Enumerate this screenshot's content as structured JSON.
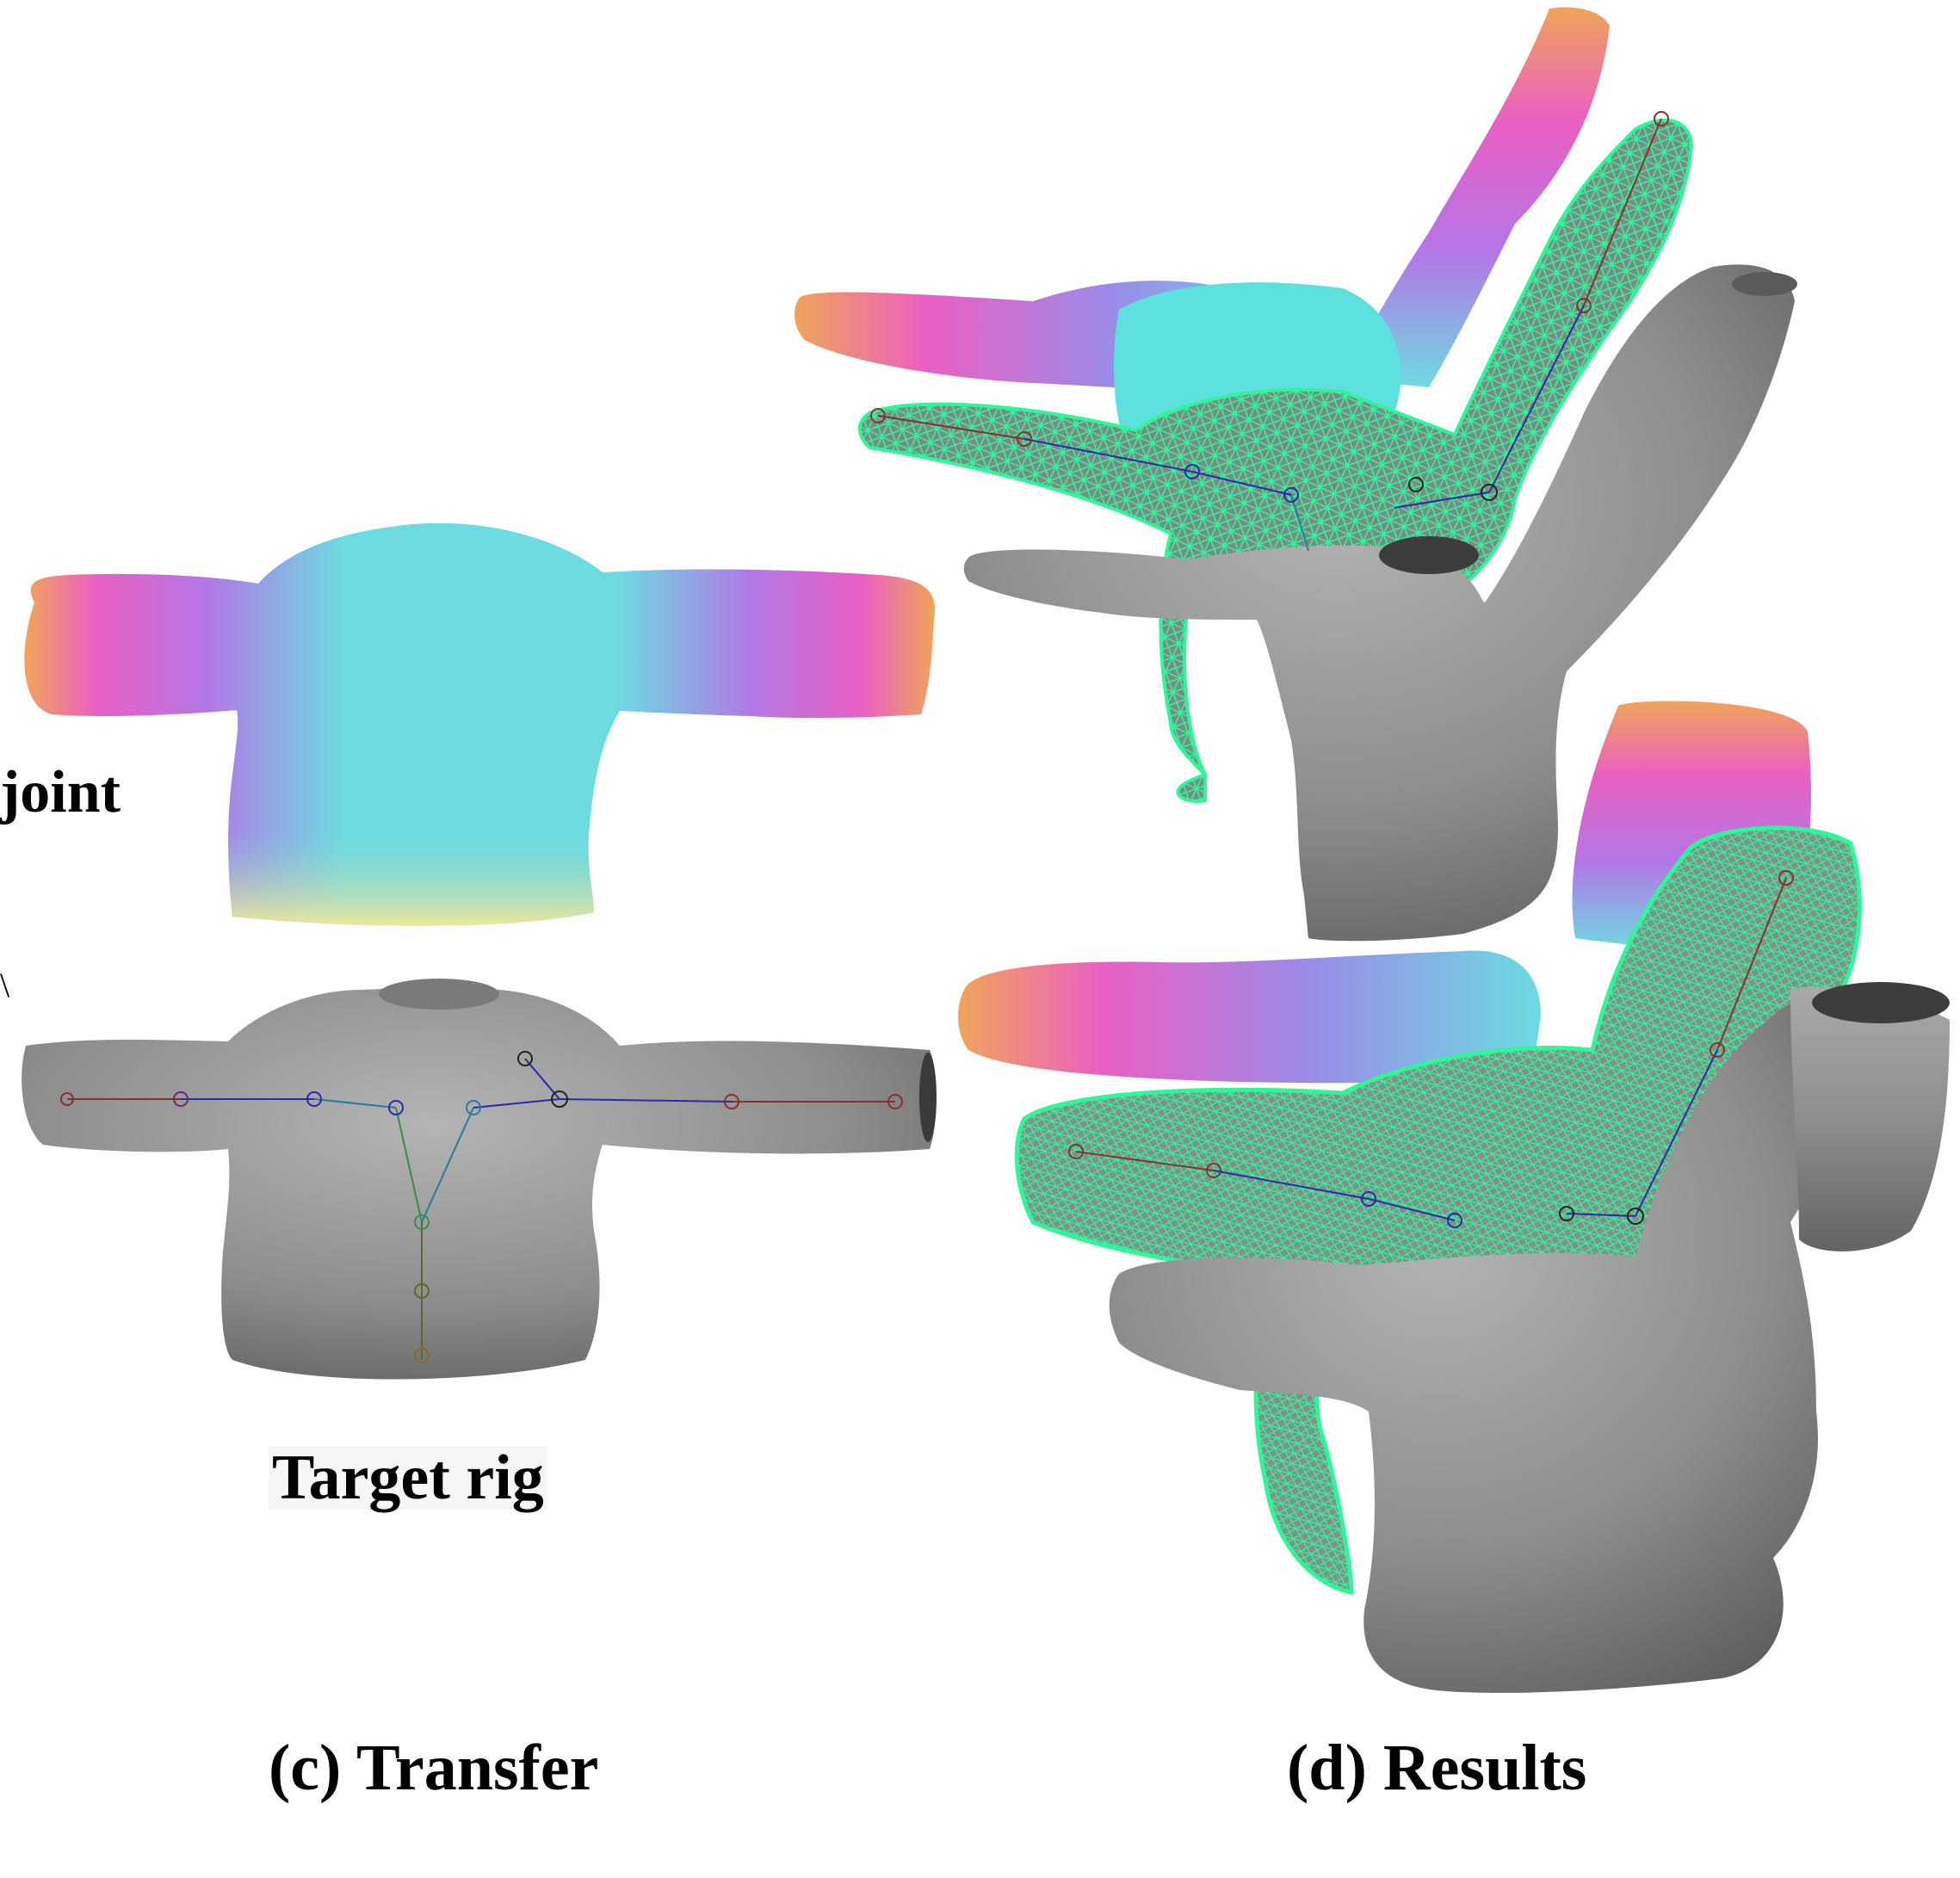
{
  "labels": {
    "joint_fragment": "joint",
    "target_rig": "Target rig",
    "panel_c": "(c) Transfer",
    "panel_d": "(d) Results",
    "edge_mark": "\\"
  },
  "colors": {
    "mesh_gray": "#8d8d8d",
    "wireframe": "#2ef58c",
    "gradient_orange": "#f0a45a",
    "gradient_pink": "#ea5fc3",
    "gradient_purple": "#b277e6",
    "gradient_cyan": "#5ee0de",
    "gradient_yellow": "#eee79a",
    "bone_red": "#8a2f2f",
    "bone_blue": "#2a2aa8",
    "bone_green": "#3c8a50"
  }
}
